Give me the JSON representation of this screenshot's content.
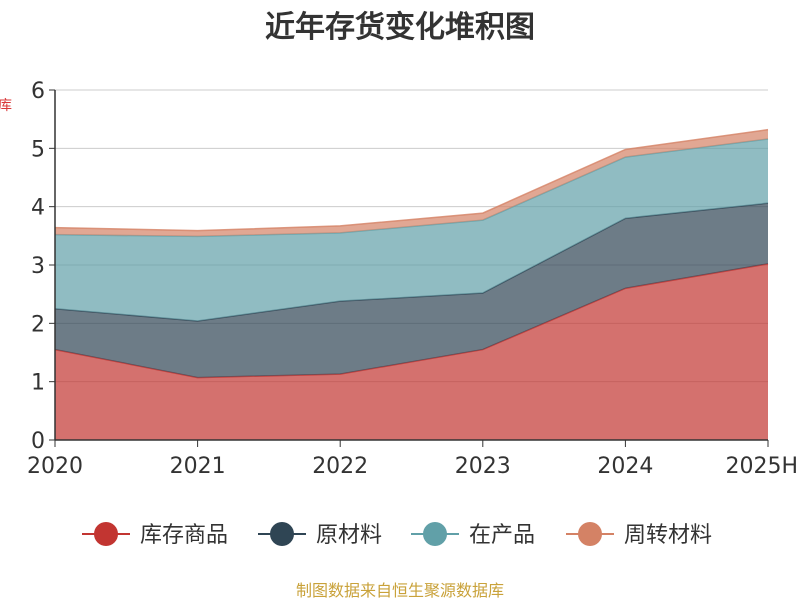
{
  "chart_data": {
    "type": "area",
    "stacked": true,
    "title": "近年存货变化堆积图",
    "x": [
      "2020",
      "2021",
      "2022",
      "2023",
      "2024",
      "2025H"
    ],
    "ylim": [
      0,
      6
    ],
    "yticks": [
      0,
      1,
      2,
      3,
      4,
      5,
      6
    ],
    "grid": true,
    "legend_position": "bottom",
    "series": [
      {
        "name": "库存商品",
        "values": [
          1.55,
          1.07,
          1.13,
          1.55,
          2.6,
          3.02
        ],
        "color": "#c23531"
      },
      {
        "name": "原材料",
        "values": [
          0.7,
          0.97,
          1.25,
          0.97,
          1.2,
          1.04
        ],
        "color": "#2f4554"
      },
      {
        "name": "在产品",
        "values": [
          1.27,
          1.45,
          1.17,
          1.25,
          1.05,
          1.1
        ],
        "color": "#61a0a8"
      },
      {
        "name": "周转材料",
        "values": [
          0.12,
          0.1,
          0.12,
          0.12,
          0.13,
          0.16
        ],
        "color": "#d48265"
      }
    ]
  },
  "source_note": "制图数据来自恒生聚源数据库"
}
